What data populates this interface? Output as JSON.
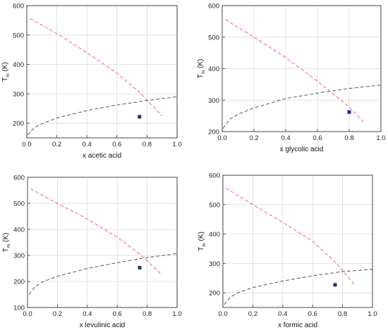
{
  "chart_data": [
    {
      "type": "line",
      "xlabel": "x acetic acid",
      "ylabel_main": "T",
      "ylabel_sub": "m",
      "ylabel_unit": "(K)",
      "xlim": [
        0.0,
        1.0
      ],
      "ylim": [
        150,
        600
      ],
      "xticks": [
        0.0,
        0.2,
        0.4,
        0.6,
        0.8,
        1.0
      ],
      "xtick_labels": [
        "0.0",
        "0.2",
        "0.4",
        "0.6",
        "0.8",
        "1.0"
      ],
      "yticks": [
        200,
        300,
        400,
        500,
        600
      ],
      "ytick_labels": [
        "200",
        "300",
        "400",
        "500",
        "600"
      ],
      "grid": true,
      "series": [
        {
          "color": "#ff5a7a",
          "style": "dashed",
          "x": [
            0.02,
            0.2,
            0.4,
            0.6,
            0.75,
            0.9
          ],
          "y": [
            556,
            505,
            440,
            370,
            305,
            225
          ]
        },
        {
          "color": "#555555",
          "style": "dashed",
          "x": [
            0.005,
            0.05,
            0.1,
            0.2,
            0.4,
            0.6,
            0.8,
            1.0
          ],
          "y": [
            160,
            185,
            198,
            218,
            243,
            262,
            277,
            290
          ]
        },
        {
          "color": "#1f2d8a",
          "style": "marker",
          "x": [
            0.75
          ],
          "y": [
            222
          ]
        }
      ]
    },
    {
      "type": "line",
      "xlabel": "x glycolic acid",
      "ylabel_main": "T",
      "ylabel_sub": "m",
      "ylabel_unit": "(K)",
      "xlim": [
        0.0,
        1.0
      ],
      "ylim": [
        200,
        600
      ],
      "xticks": [
        0.0,
        0.2,
        0.4,
        0.6,
        0.8,
        1.0
      ],
      "xtick_labels": [
        "0.0",
        "0.2",
        "0.4",
        "0.6",
        "0.8",
        "1.0"
      ],
      "yticks": [
        200,
        300,
        400,
        500,
        600
      ],
      "ytick_labels": [
        "200",
        "300",
        "400",
        "500",
        "600"
      ],
      "grid": true,
      "series": [
        {
          "color": "#ff5a7a",
          "style": "dashed",
          "x": [
            0.02,
            0.2,
            0.4,
            0.6,
            0.8,
            0.9
          ],
          "y": [
            556,
            500,
            435,
            360,
            278,
            225
          ]
        },
        {
          "color": "#555555",
          "style": "dashed",
          "x": [
            0.005,
            0.05,
            0.1,
            0.2,
            0.4,
            0.6,
            0.8,
            1.0
          ],
          "y": [
            210,
            240,
            255,
            275,
            305,
            322,
            337,
            348
          ]
        },
        {
          "color": "#1f2d8a",
          "style": "marker",
          "x": [
            0.8
          ],
          "y": [
            262
          ]
        }
      ]
    },
    {
      "type": "line",
      "xlabel": "x levulinic acid",
      "ylabel_main": "T",
      "ylabel_sub": "m",
      "ylabel_unit": "(K)",
      "xlim": [
        0.0,
        1.0
      ],
      "ylim": [
        100,
        600
      ],
      "xticks": [
        0.0,
        0.2,
        0.4,
        0.6,
        0.8,
        1.0
      ],
      "xtick_labels": [
        "0.0",
        "0.2",
        "0.4",
        "0.6",
        "0.8",
        "1.0"
      ],
      "yticks": [
        100,
        200,
        300,
        400,
        500,
        600
      ],
      "ytick_labels": [
        "100",
        "200",
        "300",
        "400",
        "500",
        "600"
      ],
      "grid": true,
      "series": [
        {
          "color": "#ff5a7a",
          "style": "dashed",
          "x": [
            0.02,
            0.2,
            0.4,
            0.6,
            0.75,
            0.9
          ],
          "y": [
            556,
            500,
            440,
            370,
            305,
            225
          ]
        },
        {
          "color": "#555555",
          "style": "dashed",
          "x": [
            0.01,
            0.05,
            0.1,
            0.2,
            0.4,
            0.6,
            0.8,
            1.0
          ],
          "y": [
            150,
            180,
            198,
            220,
            250,
            272,
            292,
            307
          ]
        },
        {
          "color": "#1f2d8a",
          "style": "marker",
          "x": [
            0.75
          ],
          "y": [
            253
          ]
        }
      ]
    },
    {
      "type": "line",
      "xlabel": "x formic acid",
      "ylabel_main": "T",
      "ylabel_sub": "m",
      "ylabel_unit": "(K)",
      "xlim": [
        0.0,
        1.0
      ],
      "ylim": [
        150,
        600
      ],
      "xticks": [
        0.0,
        0.2,
        0.4,
        0.6,
        0.8,
        1.0
      ],
      "xtick_labels": [
        "0.0",
        "0.2",
        "0.4",
        "0.6",
        "0.8",
        "1.0"
      ],
      "yticks": [
        200,
        300,
        400,
        500,
        600
      ],
      "ytick_labels": [
        "200",
        "300",
        "400",
        "500",
        "600"
      ],
      "grid": true,
      "series": [
        {
          "color": "#ff5a7a",
          "style": "dashed",
          "x": [
            0.02,
            0.2,
            0.4,
            0.6,
            0.75,
            0.88
          ],
          "y": [
            556,
            500,
            440,
            375,
            305,
            228
          ]
        },
        {
          "color": "#555555",
          "style": "dashed",
          "x": [
            0.01,
            0.05,
            0.1,
            0.2,
            0.4,
            0.6,
            0.8,
            1.0
          ],
          "y": [
            160,
            185,
            200,
            218,
            240,
            258,
            272,
            280
          ]
        },
        {
          "color": "#1f2d8a",
          "style": "marker",
          "x": [
            0.75
          ],
          "y": [
            227
          ]
        }
      ]
    }
  ]
}
